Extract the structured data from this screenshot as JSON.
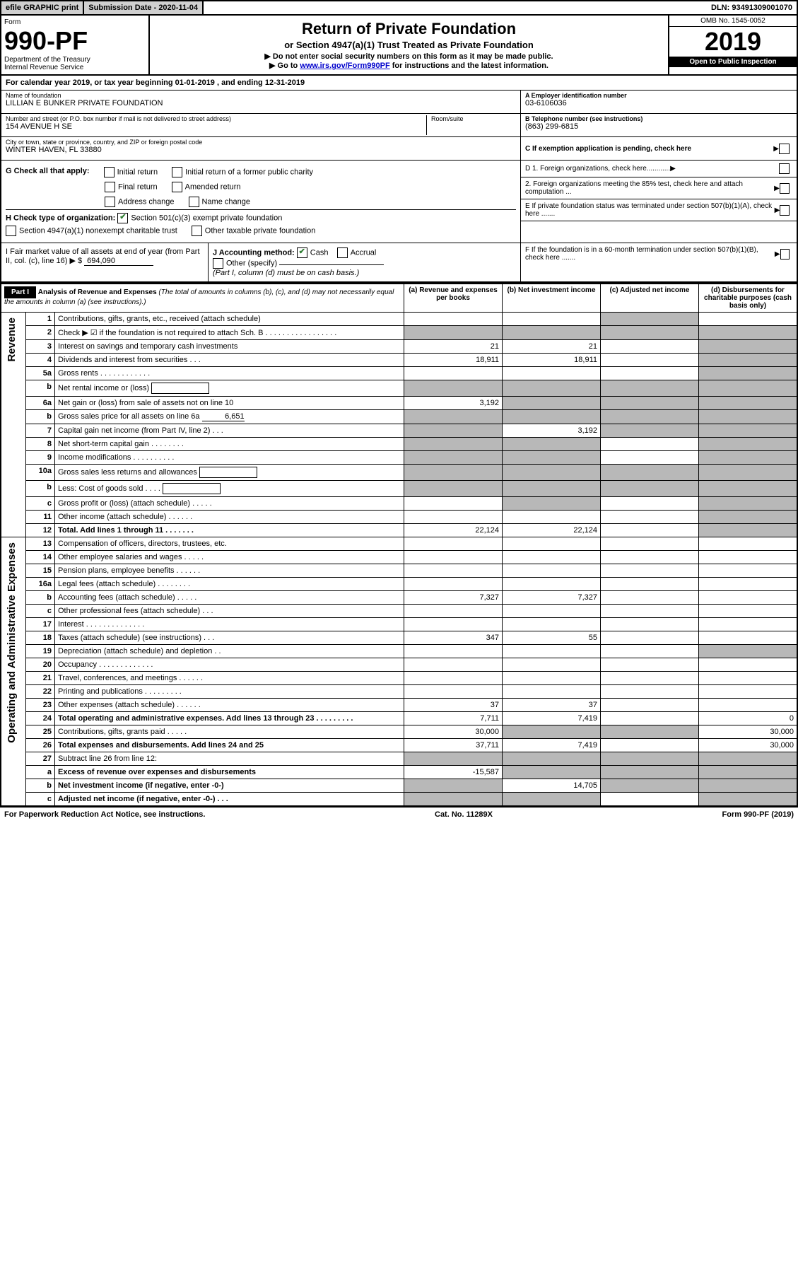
{
  "top": {
    "efile": "efile GRAPHIC print",
    "submission": "Submission Date - 2020-11-04",
    "dln": "DLN: 93491309001070"
  },
  "header": {
    "form_label": "Form",
    "form_number": "990-PF",
    "dept": "Department of the Treasury",
    "irs": "Internal Revenue Service",
    "title": "Return of Private Foundation",
    "subtitle": "or Section 4947(a)(1) Trust Treated as Private Foundation",
    "note1": "▶ Do not enter social security numbers on this form as it may be made public.",
    "note2_pre": "▶ Go to ",
    "note2_link": "www.irs.gov/Form990PF",
    "note2_post": " for instructions and the latest information.",
    "omb": "OMB No. 1545-0052",
    "year": "2019",
    "open": "Open to Public Inspection"
  },
  "calendar": {
    "text_pre": "For calendar year 2019, or tax year beginning ",
    "begin": "01-01-2019",
    "mid": " , and ending ",
    "end": "12-31-2019"
  },
  "org": {
    "name_label": "Name of foundation",
    "name": "LILLIAN E BUNKER PRIVATE FOUNDATION",
    "addr_label": "Number and street (or P.O. box number if mail is not delivered to street address)",
    "addr": "154 AVENUE H SE",
    "room_label": "Room/suite",
    "city_label": "City or town, state or province, country, and ZIP or foreign postal code",
    "city": "WINTER HAVEN, FL  33880",
    "ein_label": "A Employer identification number",
    "ein": "03-6106036",
    "phone_label": "B Telephone number (see instructions)",
    "phone": "(863) 299-6815",
    "c_label": "C If exemption application is pending, check here"
  },
  "g": {
    "label": "G Check all that apply:",
    "initial": "Initial return",
    "initial_former": "Initial return of a former public charity",
    "final": "Final return",
    "amended": "Amended return",
    "addr_change": "Address change",
    "name_change": "Name change"
  },
  "h": {
    "label": "H Check type of organization:",
    "opt1": "Section 501(c)(3) exempt private foundation",
    "opt2": "Section 4947(a)(1) nonexempt charitable trust",
    "opt3": "Other taxable private foundation"
  },
  "d": {
    "d1": "D 1. Foreign organizations, check here............",
    "d2": "2. Foreign organizations meeting the 85% test, check here and attach computation ...",
    "e": "E  If private foundation status was terminated under section 507(b)(1)(A), check here .......",
    "f": "F  If the foundation is in a 60-month termination under section 507(b)(1)(B), check here ......."
  },
  "i": {
    "label": "I Fair market value of all assets at end of year (from Part II, col. (c), line 16)",
    "val": "694,090"
  },
  "j": {
    "label": "J Accounting method:",
    "cash": "Cash",
    "accrual": "Accrual",
    "other": "Other (specify)",
    "note": "(Part I, column (d) must be on cash basis.)"
  },
  "part1": {
    "label": "Part I",
    "title": "Analysis of Revenue and Expenses",
    "title_note": "(The total of amounts in columns (b), (c), and (d) may not necessarily equal the amounts in column (a) (see instructions).)",
    "col_a": "(a)   Revenue and expenses per books",
    "col_b": "(b)  Net investment income",
    "col_c": "(c)  Adjusted net income",
    "col_d": "(d)  Disbursements for charitable purposes (cash basis only)"
  },
  "vlabels": {
    "revenue": "Revenue",
    "expenses": "Operating and Administrative Expenses"
  },
  "rows": [
    {
      "n": "1",
      "d": "Contributions, gifts, grants, etc., received (attach schedule)",
      "a": "",
      "b": "",
      "c_shade": true,
      "dv": ""
    },
    {
      "n": "2",
      "d": "Check ▶ ☑ if the foundation is not required to attach Sch. B",
      "dots": ". . . . . . . . . . . . . . . . .",
      "all_shade": true
    },
    {
      "n": "3",
      "d": "Interest on savings and temporary cash investments",
      "a": "21",
      "b": "21",
      "c": "",
      "dv": "",
      "d_shade": true
    },
    {
      "n": "4",
      "d": "Dividends and interest from securities   .  .  .",
      "a": "18,911",
      "b": "18,911",
      "c": "",
      "dv": "",
      "d_shade": true
    },
    {
      "n": "5a",
      "d": "Gross rents    . . . . . . . . . . . .",
      "a": "",
      "b": "",
      "c": "",
      "dv": "",
      "d_shade": true
    },
    {
      "n": "b",
      "d": "Net rental income or (loss)",
      "box": true,
      "all_shade": true
    },
    {
      "n": "6a",
      "d": "Net gain or (loss) from sale of assets not on line 10",
      "a": "3,192",
      "b_shade": true,
      "c_shade": true,
      "d_shade": true
    },
    {
      "n": "b",
      "d": "Gross sales price for all assets on line 6a",
      "inline_val": "6,651",
      "all_shade": true
    },
    {
      "n": "7",
      "d": "Capital gain net income (from Part IV, line 2)   .  .  .",
      "a_shade": true,
      "b": "3,192",
      "c_shade": true,
      "d_shade": true
    },
    {
      "n": "8",
      "d": "Net short-term capital gain  . . . . . . . .",
      "a_shade": true,
      "b_shade": true,
      "c": "",
      "d_shade": true
    },
    {
      "n": "9",
      "d": "Income modifications  . . . . . . . . . .",
      "a_shade": true,
      "b_shade": true,
      "c": "",
      "d_shade": true
    },
    {
      "n": "10a",
      "d": "Gross sales less returns and allowances",
      "box": true,
      "all_shade": true
    },
    {
      "n": "b",
      "d": "Less: Cost of goods sold    .  .  .  .",
      "box": true,
      "all_shade": true
    },
    {
      "n": "c",
      "d": "Gross profit or (loss) (attach schedule)   . . . . .",
      "a": "",
      "b_shade": true,
      "c": "",
      "d_shade": true
    },
    {
      "n": "11",
      "d": "Other income (attach schedule)    . . . . . .",
      "a": "",
      "b": "",
      "c": "",
      "d_shade": true
    },
    {
      "n": "12",
      "d": "Total. Add lines 1 through 11    . . . . . . .",
      "bold": true,
      "a": "22,124",
      "b": "22,124",
      "c": "",
      "d_shade": true
    },
    {
      "n": "13",
      "d": "Compensation of officers, directors, trustees, etc.",
      "a": "",
      "b": "",
      "c": "",
      "dv": ""
    },
    {
      "n": "14",
      "d": "Other employee salaries and wages    . . . . .",
      "a": "",
      "b": "",
      "c": "",
      "dv": ""
    },
    {
      "n": "15",
      "d": "Pension plans, employee benefits   . . . . . .",
      "a": "",
      "b": "",
      "c": "",
      "dv": ""
    },
    {
      "n": "16a",
      "d": "Legal fees (attach schedule)  . . . . . . . .",
      "a": "",
      "b": "",
      "c": "",
      "dv": ""
    },
    {
      "n": "b",
      "d": "Accounting fees (attach schedule)    . . . . .",
      "a": "7,327",
      "b": "7,327",
      "c": "",
      "dv": ""
    },
    {
      "n": "c",
      "d": "Other professional fees (attach schedule)    . . .",
      "a": "",
      "b": "",
      "c": "",
      "dv": ""
    },
    {
      "n": "17",
      "d": "Interest   . . . . . . . . . . . . . .",
      "a": "",
      "b": "",
      "c": "",
      "dv": ""
    },
    {
      "n": "18",
      "d": "Taxes (attach schedule) (see instructions)    .  .  .",
      "a": "347",
      "b": "55",
      "c": "",
      "dv": ""
    },
    {
      "n": "19",
      "d": "Depreciation (attach schedule) and depletion    .  .",
      "a": "",
      "b": "",
      "c": "",
      "d_shade": true
    },
    {
      "n": "20",
      "d": "Occupancy  . . . . . . . . . . . . .",
      "a": "",
      "b": "",
      "c": "",
      "dv": ""
    },
    {
      "n": "21",
      "d": "Travel, conferences, and meetings  . . . . . .",
      "a": "",
      "b": "",
      "c": "",
      "dv": ""
    },
    {
      "n": "22",
      "d": "Printing and publications  . . . . . . . . .",
      "a": "",
      "b": "",
      "c": "",
      "dv": ""
    },
    {
      "n": "23",
      "d": "Other expenses (attach schedule)   . . . . . .",
      "a": "37",
      "b": "37",
      "c": "",
      "dv": ""
    },
    {
      "n": "24",
      "d": "Total operating and administrative expenses. Add lines 13 through 23   . . . . . . . . .",
      "bold": true,
      "a": "7,711",
      "b": "7,419",
      "c": "",
      "dv": "0"
    },
    {
      "n": "25",
      "d": "Contributions, gifts, grants paid     . . . . .",
      "a": "30,000",
      "b_shade": true,
      "c_shade": true,
      "dv": "30,000"
    },
    {
      "n": "26",
      "d": "Total expenses and disbursements. Add lines 24 and 25",
      "bold": true,
      "a": "37,711",
      "b": "7,419",
      "c": "",
      "dv": "30,000"
    },
    {
      "n": "27",
      "d": "Subtract line 26 from line 12:",
      "all_shade": true,
      "a_noshade": true
    },
    {
      "n": "a",
      "d": "Excess of revenue over expenses and disbursements",
      "bold": true,
      "a": "-15,587",
      "b_shade": true,
      "c_shade": true,
      "d_shade": true
    },
    {
      "n": "b",
      "d": "Net investment income (if negative, enter -0-)",
      "bold": true,
      "a_shade": true,
      "b": "14,705",
      "c_shade": true,
      "d_shade": true
    },
    {
      "n": "c",
      "d": "Adjusted net income (if negative, enter -0-)   .  .  .",
      "bold": true,
      "a_shade": true,
      "b_shade": true,
      "c": "",
      "d_shade": true
    }
  ],
  "footer": {
    "left": "For Paperwork Reduction Act Notice, see instructions.",
    "mid": "Cat. No. 11289X",
    "right": "Form 990-PF (2019)"
  }
}
